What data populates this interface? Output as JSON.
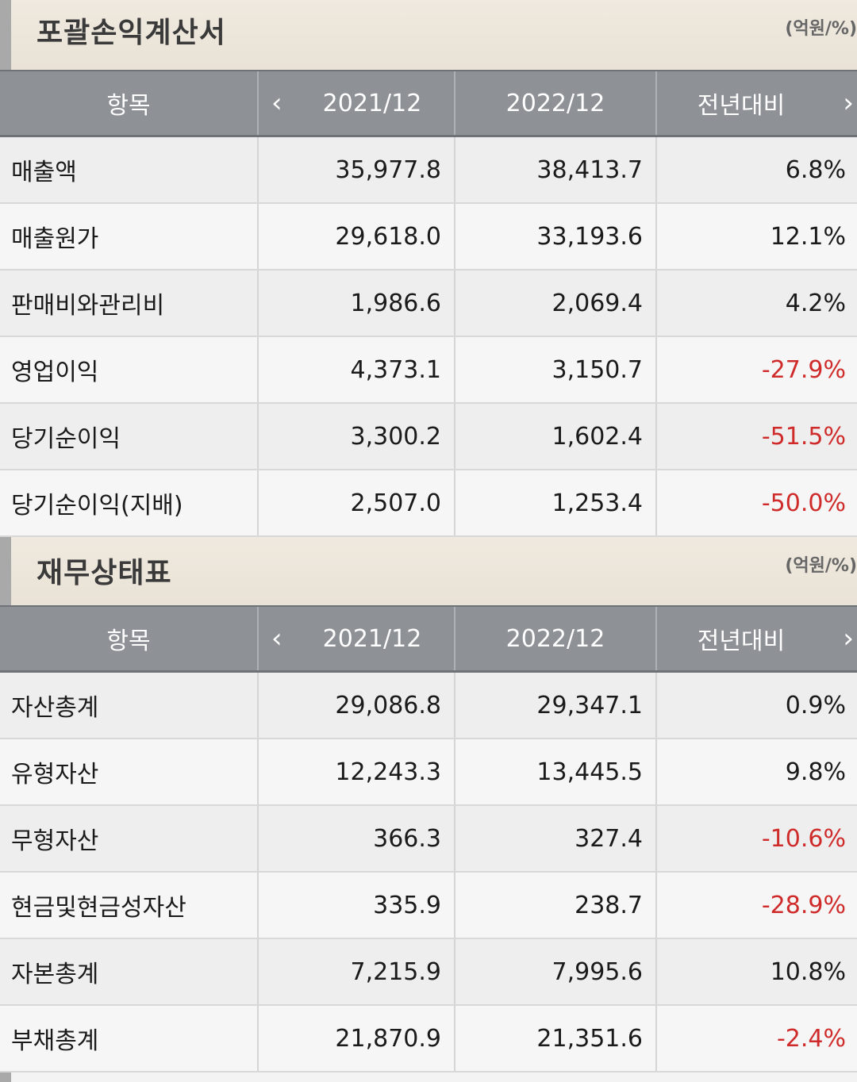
{
  "income": {
    "title": "포괄손익계산서",
    "unit": "(억원/%)",
    "headers": {
      "item": "항목",
      "y1": "2021/12",
      "y2": "2022/12",
      "change": "전년대비"
    },
    "rows": [
      {
        "label": "매출액",
        "y1": "35,977.8",
        "y2": "38,413.7",
        "change": "6.8%"
      },
      {
        "label": "매출원가",
        "y1": "29,618.0",
        "y2": "33,193.6",
        "change": "12.1%"
      },
      {
        "label": "판매비와관리비",
        "y1": "1,986.6",
        "y2": "2,069.4",
        "change": "4.2%"
      },
      {
        "label": "영업이익",
        "y1": "4,373.1",
        "y2": "3,150.7",
        "change": "-27.9%"
      },
      {
        "label": "당기순이익",
        "y1": "3,300.2",
        "y2": "1,602.4",
        "change": "-51.5%"
      },
      {
        "label": "당기순이익(지배)",
        "y1": "2,507.0",
        "y2": "1,253.4",
        "change": "-50.0%"
      }
    ]
  },
  "balance": {
    "title": "재무상태표",
    "unit": "(억원/%)",
    "headers": {
      "item": "항목",
      "y1": "2021/12",
      "y2": "2022/12",
      "change": "전년대비"
    },
    "rows": [
      {
        "label": "자산총계",
        "y1": "29,086.8",
        "y2": "29,347.1",
        "change": "0.9%"
      },
      {
        "label": "유형자산",
        "y1": "12,243.3",
        "y2": "13,445.5",
        "change": "9.8%"
      },
      {
        "label": "무형자산",
        "y1": "366.3",
        "y2": "327.4",
        "change": "-10.6%"
      },
      {
        "label": "현금및현금성자산",
        "y1": "335.9",
        "y2": "238.7",
        "change": "-28.9%"
      },
      {
        "label": "자본총계",
        "y1": "7,215.9",
        "y2": "7,995.6",
        "change": "10.8%"
      },
      {
        "label": "부채총계",
        "y1": "21,870.9",
        "y2": "21,351.6",
        "change": "-2.4%"
      }
    ]
  },
  "nav": {
    "prev_icon": "chevron-left-icon",
    "next_icon": "chevron-right-icon"
  },
  "colors": {
    "negative": "#d02b2b",
    "header_bg": "#8e9196"
  }
}
